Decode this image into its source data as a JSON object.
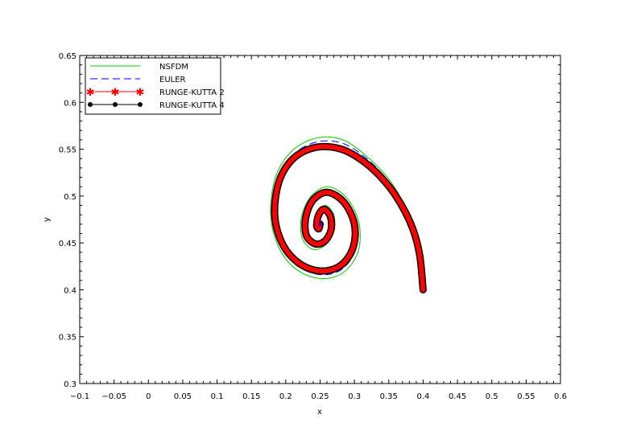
{
  "chart_data": {
    "type": "line",
    "title": "",
    "xlabel": "x",
    "ylabel": "y",
    "xlim": [
      -0.1,
      0.6
    ],
    "ylim": [
      0.3,
      0.65
    ],
    "xticks": [
      -0.1,
      -0.05,
      0,
      0.05,
      0.1,
      0.15,
      0.2,
      0.25,
      0.3,
      0.35,
      0.4,
      0.45,
      0.5,
      0.55,
      0.6
    ],
    "xtick_labels": [
      "−0.1",
      "−0.05",
      "0",
      "0.05",
      "0.1",
      "0.15",
      "0.2",
      "0.25",
      "0.3",
      "0.35",
      "0.4",
      "0.45",
      "0.5",
      "0.55",
      "0.6"
    ],
    "yticks": [
      0.3,
      0.35,
      0.4,
      0.45,
      0.5,
      0.55,
      0.6,
      0.65
    ],
    "ytick_labels": [
      "0.3",
      "0.35",
      "0.4",
      "0.45",
      "0.5",
      "0.55",
      "0.6",
      "0.65"
    ],
    "grid": false,
    "legend_position": "top-left",
    "equilibrium": [
      0.25,
      0.47
    ],
    "series": [
      {
        "name": "NSFDM",
        "color": "#00cc00",
        "style": "solid",
        "x": [
          0.4,
          0.396,
          0.386,
          0.37,
          0.347,
          0.317,
          0.283,
          0.245,
          0.209,
          0.185,
          0.178,
          0.19,
          0.215,
          0.25,
          0.283,
          0.305,
          0.307,
          0.29,
          0.262,
          0.237,
          0.223,
          0.224,
          0.24,
          0.258,
          0.27,
          0.27,
          0.258,
          0.246,
          0.242,
          0.247,
          0.252
        ],
        "y": [
          0.4,
          0.438,
          0.468,
          0.495,
          0.521,
          0.543,
          0.56,
          0.562,
          0.548,
          0.52,
          0.48,
          0.445,
          0.422,
          0.412,
          0.418,
          0.44,
          0.47,
          0.497,
          0.51,
          0.5,
          0.478,
          0.455,
          0.443,
          0.448,
          0.462,
          0.48,
          0.49,
          0.482,
          0.468,
          0.462,
          0.469
        ]
      },
      {
        "name": "EULER",
        "color": "#0000ff",
        "style": "dashed",
        "x": [
          0.4,
          0.396,
          0.386,
          0.37,
          0.347,
          0.318,
          0.284,
          0.247,
          0.212,
          0.189,
          0.181,
          0.193,
          0.218,
          0.251,
          0.282,
          0.302,
          0.304,
          0.288,
          0.262,
          0.239,
          0.226,
          0.227,
          0.241,
          0.257,
          0.268,
          0.268,
          0.257,
          0.247,
          0.243,
          0.247,
          0.251
        ],
        "y": [
          0.4,
          0.438,
          0.467,
          0.493,
          0.518,
          0.54,
          0.556,
          0.558,
          0.545,
          0.518,
          0.48,
          0.447,
          0.425,
          0.416,
          0.422,
          0.443,
          0.47,
          0.495,
          0.507,
          0.498,
          0.477,
          0.456,
          0.446,
          0.45,
          0.463,
          0.479,
          0.488,
          0.481,
          0.468,
          0.463,
          0.469
        ]
      },
      {
        "name": "RUNGE-KUTTA 2",
        "color": "#ff0000",
        "style": "solid-star",
        "x": [
          0.4,
          0.395,
          0.385,
          0.368,
          0.345,
          0.315,
          0.281,
          0.244,
          0.211,
          0.19,
          0.184,
          0.196,
          0.22,
          0.251,
          0.28,
          0.298,
          0.3,
          0.285,
          0.261,
          0.24,
          0.229,
          0.23,
          0.243,
          0.257,
          0.266,
          0.265,
          0.256,
          0.248,
          0.245,
          0.248,
          0.25
        ],
        "y": [
          0.4,
          0.437,
          0.465,
          0.491,
          0.515,
          0.536,
          0.55,
          0.552,
          0.54,
          0.515,
          0.479,
          0.448,
          0.428,
          0.42,
          0.426,
          0.445,
          0.47,
          0.493,
          0.504,
          0.496,
          0.477,
          0.458,
          0.449,
          0.452,
          0.464,
          0.478,
          0.486,
          0.48,
          0.469,
          0.465,
          0.47
        ]
      },
      {
        "name": "RUNGE-KUTTA 4",
        "color": "#000000",
        "style": "solid-dot",
        "x": [
          0.4,
          0.395,
          0.385,
          0.368,
          0.345,
          0.315,
          0.281,
          0.244,
          0.211,
          0.19,
          0.184,
          0.196,
          0.22,
          0.251,
          0.28,
          0.298,
          0.3,
          0.285,
          0.261,
          0.24,
          0.229,
          0.23,
          0.243,
          0.257,
          0.266,
          0.265,
          0.256,
          0.248,
          0.245,
          0.248,
          0.25
        ],
        "y": [
          0.4,
          0.437,
          0.465,
          0.491,
          0.515,
          0.536,
          0.55,
          0.552,
          0.54,
          0.515,
          0.479,
          0.448,
          0.428,
          0.42,
          0.426,
          0.445,
          0.47,
          0.493,
          0.504,
          0.496,
          0.477,
          0.458,
          0.449,
          0.452,
          0.464,
          0.478,
          0.486,
          0.48,
          0.469,
          0.465,
          0.47
        ]
      }
    ]
  }
}
